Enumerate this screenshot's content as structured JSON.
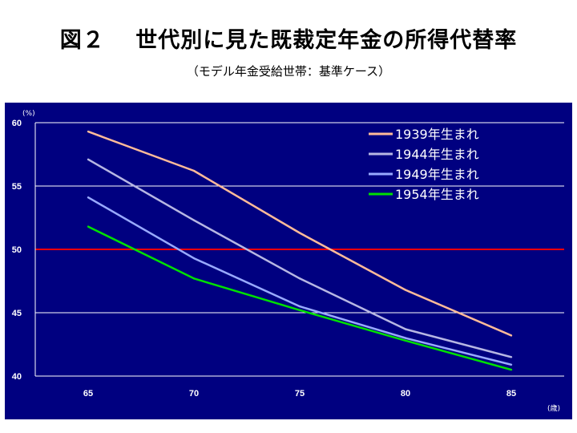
{
  "page": {
    "title": "図２　 世代別に見た既裁定年金の所得代替率",
    "subtitle": "（モデル年金受給世帯：基準ケース）"
  },
  "chart_data": {
    "type": "line",
    "ylabel_unit": "(%)",
    "xlabel_unit": "(歳)",
    "x": [
      65,
      70,
      75,
      80,
      85
    ],
    "x_ticks": [
      "65",
      "70",
      "75",
      "80",
      "85"
    ],
    "y_ticks": [
      "40",
      "45",
      "50",
      "55",
      "60"
    ],
    "ylim": [
      40,
      60
    ],
    "xlim": [
      62.5,
      87.5
    ],
    "grid": true,
    "legend_position": "top-right",
    "background": "#000080",
    "reference_line": {
      "y": 50,
      "color": "#ff0000"
    },
    "series": [
      {
        "name": "1939年生まれ",
        "color": "#ffbb99",
        "values": [
          59.3,
          56.2,
          51.3,
          46.8,
          43.2
        ]
      },
      {
        "name": "1944年生まれ",
        "color": "#b7b7e3",
        "values": [
          57.1,
          52.3,
          47.7,
          43.7,
          41.5
        ]
      },
      {
        "name": "1949年生まれ",
        "color": "#99aaff",
        "values": [
          54.1,
          49.3,
          45.5,
          43.0,
          40.9
        ]
      },
      {
        "name": "1954年生まれ",
        "color": "#00e000",
        "values": [
          51.8,
          47.7,
          45.2,
          42.8,
          40.5
        ]
      }
    ]
  }
}
